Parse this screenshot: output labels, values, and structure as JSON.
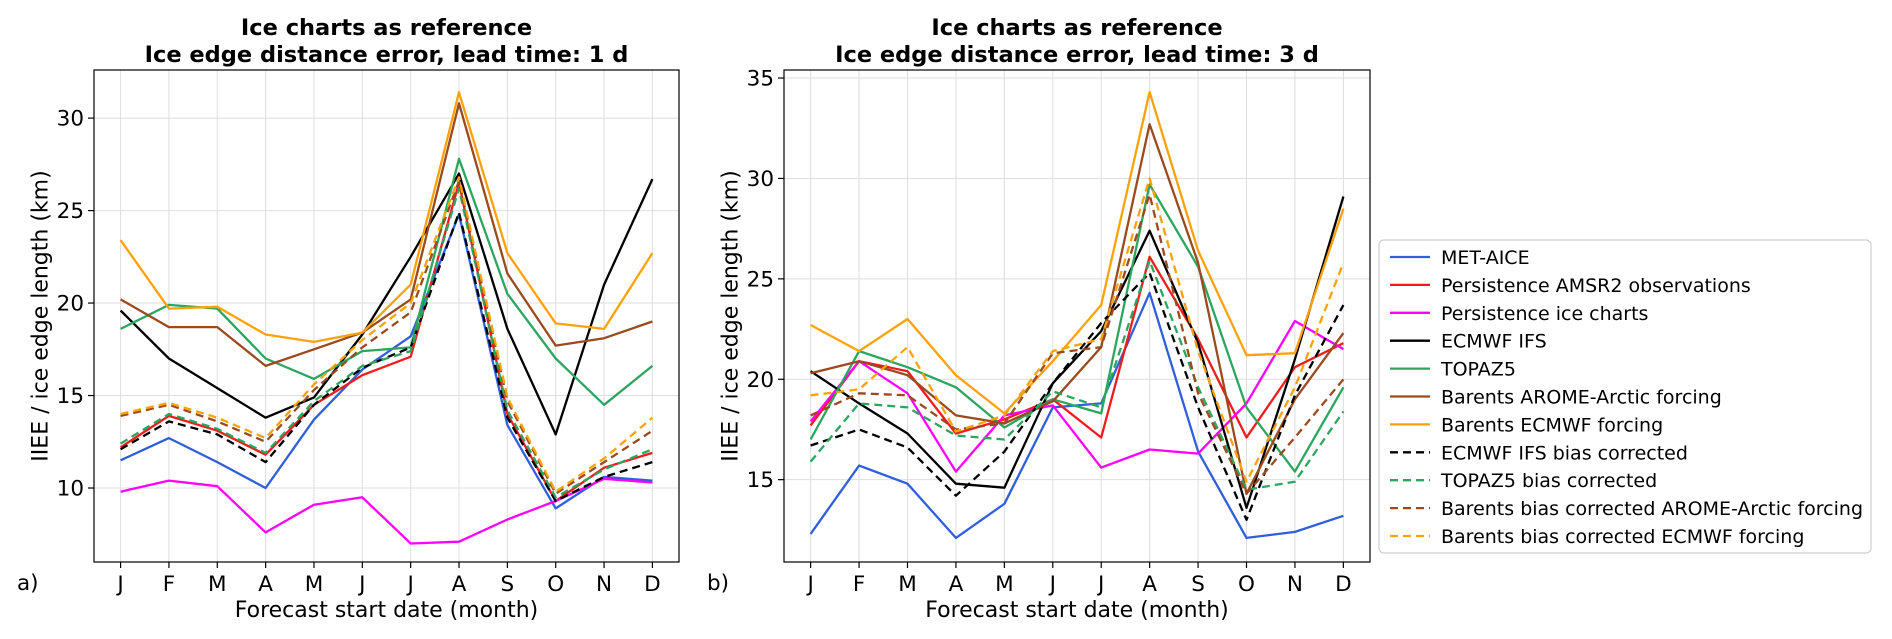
{
  "chart_data": [
    {
      "panel_label": "a)",
      "type": "line",
      "title": "Ice charts as reference",
      "subtitle": "Ice edge distance error, lead time: 1 d",
      "xlabel": "Forecast start date (month)",
      "ylabel": "IIEE / ice edge length (km)",
      "categories": [
        "J",
        "F",
        "M",
        "A",
        "M",
        "J",
        "J",
        "A",
        "S",
        "O",
        "N",
        "D"
      ],
      "yticks": [
        10,
        15,
        20,
        25,
        30
      ],
      "ylim": [
        6.0,
        32.6
      ],
      "grid": true,
      "series": [
        {
          "name": "MET-AICE",
          "color": "#2f5fdc",
          "dashed": false,
          "values": [
            11.5,
            12.7,
            11.4,
            10.0,
            13.7,
            16.4,
            18.2,
            24.8,
            13.4,
            8.9,
            10.6,
            10.4
          ]
        },
        {
          "name": "Persistence AMSR2 observations",
          "color": "#ee1c1c",
          "dashed": false,
          "values": [
            12.2,
            13.9,
            13.1,
            11.8,
            14.5,
            16.1,
            17.1,
            26.5,
            14.0,
            9.3,
            11.1,
            11.9
          ]
        },
        {
          "name": "Persistence ice charts",
          "color": "#ff00ff",
          "dashed": false,
          "values": [
            9.8,
            10.4,
            10.1,
            7.6,
            9.1,
            9.5,
            7.0,
            7.1,
            8.3,
            9.3,
            10.5,
            10.3
          ]
        },
        {
          "name": "ECMWF IFS",
          "color": "#000000",
          "dashed": false,
          "values": [
            19.6,
            17.0,
            15.4,
            13.8,
            14.9,
            18.3,
            22.5,
            27.0,
            18.6,
            12.9,
            21.0,
            26.7
          ]
        },
        {
          "name": "TOPAZ5",
          "color": "#2ca65e",
          "dashed": false,
          "values": [
            18.6,
            19.9,
            19.7,
            17.0,
            15.9,
            17.4,
            17.6,
            27.8,
            20.5,
            17.0,
            14.5,
            16.6
          ]
        },
        {
          "name": "Barents AROME-Arctic forcing",
          "color": "#9a4a1e",
          "dashed": false,
          "values": [
            20.2,
            18.7,
            18.7,
            16.6,
            17.5,
            18.4,
            20.2,
            30.8,
            21.6,
            17.7,
            18.1,
            19.0
          ]
        },
        {
          "name": "Barents ECMWF forcing",
          "color": "#ffa10a",
          "dashed": false,
          "values": [
            23.4,
            19.7,
            19.8,
            18.3,
            17.9,
            18.4,
            21.0,
            31.4,
            22.7,
            18.9,
            18.6,
            22.7
          ]
        },
        {
          "name": "ECMWF IFS bias corrected",
          "color": "#000000",
          "dashed": true,
          "values": [
            12.1,
            13.6,
            12.9,
            11.4,
            14.5,
            16.5,
            17.6,
            24.9,
            13.8,
            9.3,
            10.6,
            11.4
          ]
        },
        {
          "name": "TOPAZ5 bias corrected",
          "color": "#2ca65e",
          "dashed": true,
          "values": [
            12.4,
            14.0,
            13.2,
            11.9,
            14.7,
            16.6,
            17.4,
            26.2,
            14.2,
            9.5,
            11.0,
            12.1
          ]
        },
        {
          "name": "Barents bias corrected AROME-Arctic forcing",
          "color": "#9a4a1e",
          "dashed": true,
          "values": [
            13.9,
            14.5,
            13.6,
            12.5,
            15.3,
            17.6,
            19.5,
            26.6,
            14.7,
            9.7,
            11.4,
            13.1
          ]
        },
        {
          "name": "Barents bias corrected ECMWF forcing",
          "color": "#ffa10a",
          "dashed": true,
          "values": [
            14.0,
            14.6,
            13.8,
            12.7,
            15.6,
            18.0,
            20.0,
            26.8,
            14.9,
            9.8,
            11.6,
            13.8
          ]
        }
      ]
    },
    {
      "panel_label": "b)",
      "type": "line",
      "title": "Ice charts as reference",
      "subtitle": "Ice edge distance error, lead time: 3 d",
      "xlabel": "Forecast start date (month)",
      "ylabel": "IIEE / ice edge length (km)",
      "categories": [
        "J",
        "F",
        "M",
        "A",
        "M",
        "J",
        "J",
        "A",
        "S",
        "O",
        "N",
        "D"
      ],
      "yticks": [
        15,
        20,
        25,
        30,
        35
      ],
      "ylim": [
        10.9,
        35.4
      ],
      "grid": true,
      "series": [
        {
          "name": "MET-AICE",
          "color": "#2f5fdc",
          "dashed": false,
          "values": [
            12.3,
            15.7,
            14.8,
            12.1,
            13.8,
            18.6,
            18.8,
            24.3,
            16.4,
            12.1,
            12.4,
            13.2
          ]
        },
        {
          "name": "Persistence AMSR2 observations",
          "color": "#ee1c1c",
          "dashed": false,
          "values": [
            17.7,
            20.9,
            20.4,
            17.3,
            18.0,
            19.0,
            17.1,
            26.1,
            22.0,
            17.1,
            20.6,
            21.8
          ]
        },
        {
          "name": "Persistence ice charts",
          "color": "#ff00ff",
          "dashed": false,
          "values": [
            17.9,
            20.9,
            19.3,
            15.4,
            18.2,
            18.7,
            15.6,
            16.5,
            16.3,
            18.8,
            22.9,
            21.5
          ]
        },
        {
          "name": "ECMWF IFS",
          "color": "#000000",
          "dashed": false,
          "values": [
            20.4,
            18.8,
            17.3,
            14.8,
            14.6,
            19.8,
            22.4,
            27.4,
            21.8,
            13.6,
            21.0,
            29.1
          ]
        },
        {
          "name": "TOPAZ5",
          "color": "#2ca65e",
          "dashed": false,
          "values": [
            17.0,
            21.4,
            20.6,
            19.6,
            17.6,
            19.0,
            18.3,
            29.7,
            25.6,
            18.6,
            15.4,
            19.6
          ]
        },
        {
          "name": "Barents AROME-Arctic forcing",
          "color": "#9a4a1e",
          "dashed": false,
          "values": [
            20.3,
            20.9,
            20.2,
            18.2,
            17.8,
            18.9,
            21.6,
            32.7,
            25.8,
            14.3,
            19.0,
            22.3
          ]
        },
        {
          "name": "Barents ECMWF forcing",
          "color": "#ffa10a",
          "dashed": false,
          "values": [
            22.7,
            21.4,
            23.0,
            20.2,
            18.3,
            20.9,
            23.7,
            34.3,
            26.4,
            21.2,
            21.3,
            28.5
          ]
        },
        {
          "name": "ECMWF IFS bias corrected",
          "color": "#000000",
          "dashed": true,
          "values": [
            16.7,
            17.5,
            16.6,
            14.2,
            16.4,
            19.8,
            22.8,
            25.3,
            18.6,
            13.0,
            19.2,
            23.7
          ]
        },
        {
          "name": "TOPAZ5 bias corrected",
          "color": "#2ca65e",
          "dashed": true,
          "values": [
            15.9,
            18.8,
            18.6,
            17.2,
            17.0,
            19.4,
            18.6,
            25.9,
            19.6,
            14.5,
            14.9,
            18.4
          ]
        },
        {
          "name": "Barents bias corrected AROME-Arctic forcing",
          "color": "#9a4a1e",
          "dashed": true,
          "values": [
            18.2,
            19.3,
            19.2,
            17.5,
            17.8,
            21.3,
            21.6,
            29.2,
            19.3,
            14.3,
            17.1,
            20.0
          ]
        },
        {
          "name": "Barents bias corrected ECMWF forcing",
          "color": "#ffa10a",
          "dashed": true,
          "values": [
            19.2,
            19.5,
            21.6,
            17.4,
            18.2,
            21.4,
            22.0,
            30.0,
            21.4,
            14.9,
            19.6,
            25.8
          ]
        }
      ]
    }
  ],
  "legend": {
    "placement": "right",
    "source_chart": 0
  }
}
